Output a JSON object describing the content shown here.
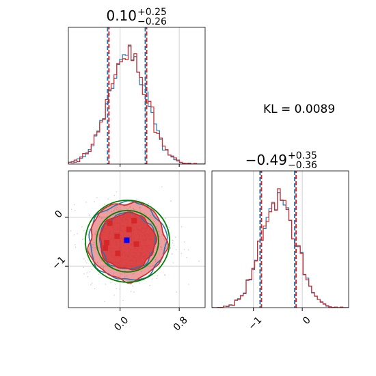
{
  "chart_data": {
    "type": "corner",
    "colors": {
      "blue_series": "#1f77b4",
      "red_series": "#d62728",
      "green_contour": "#008000",
      "quantile_blue": "#1f77b4",
      "quantile_red": "#d62728",
      "grid": "#d0d0d0",
      "scatter_points": "#c8d2dc"
    },
    "annotation": {
      "kl_text": "KL = 0.0089"
    },
    "panels": {
      "param1_hist": {
        "title_main": "0.10",
        "title_sup": "+0.25",
        "title_sub": "−0.26",
        "median": 0.1,
        "q_low": -0.16,
        "q_high": 0.35,
        "x_range": [
          -0.7,
          1.15
        ],
        "x_grid": [
          0.0,
          0.8
        ],
        "mean": 0.1,
        "sigma": 0.255
      },
      "param2_hist": {
        "title_main": "−0.49",
        "title_sup": "+0.35",
        "title_sub": "−0.36",
        "median": -0.49,
        "q_low": -0.85,
        "q_high": -0.14,
        "x_range": [
          -1.85,
          0.95
        ],
        "x_grid": [
          -1,
          0
        ],
        "x_ticks": [
          {
            "value": -1,
            "label": "−1"
          },
          {
            "value": 0,
            "label": "0"
          }
        ],
        "mean": -0.49,
        "sigma": 0.355
      },
      "joint": {
        "x_range": [
          -0.7,
          1.15
        ],
        "y_range": [
          -1.85,
          0.95
        ],
        "x_ticks": [
          {
            "value": 0.0,
            "label": "0.0"
          },
          {
            "value": 0.8,
            "label": "0.8"
          }
        ],
        "y_ticks": [
          {
            "value": 0,
            "label": "0"
          },
          {
            "value": -1,
            "label": "−1"
          }
        ],
        "blue_marker": [
          0.09,
          -0.47
        ],
        "red_markers": [
          [
            -0.14,
            -0.12
          ],
          [
            0.19,
            -0.07
          ],
          [
            0.12,
            -0.25
          ],
          [
            -0.04,
            -0.39
          ],
          [
            -0.18,
            -0.52
          ],
          [
            -0.2,
            -0.63
          ],
          [
            0.22,
            -0.55
          ],
          [
            -0.03,
            -0.74
          ]
        ],
        "green_ellipses": [
          {
            "rx": 0.42,
            "ry": 0.63
          },
          {
            "rx": 0.57,
            "ry": 0.84
          }
        ]
      }
    }
  }
}
